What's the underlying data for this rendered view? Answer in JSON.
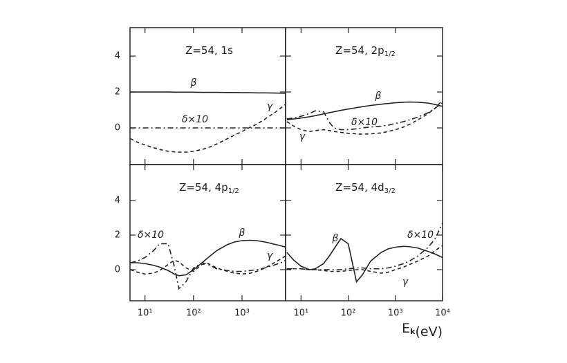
{
  "chart_data": [
    {
      "type": "line",
      "title": "Z=54, 1s",
      "xscale": "log",
      "xlim": [
        4.9,
        7900
      ],
      "ylim": [
        -2.04,
        5.58
      ],
      "xticks": [
        10,
        100,
        1000
      ],
      "yticks": [
        0,
        2,
        4
      ],
      "show_xtick_labels": false,
      "show_ytick_labels": true,
      "x": [
        5,
        7,
        10,
        15,
        20,
        30,
        40,
        50,
        70,
        100,
        150,
        200,
        300,
        500,
        700,
        1000,
        1500,
        2000,
        3000,
        5000,
        7000,
        7900
      ],
      "series": [
        {
          "name": "β",
          "style": "solid",
          "color": "#222",
          "values": [
            2.0,
            2.0,
            2.0,
            2.0,
            2.0,
            2.0,
            1.99,
            1.99,
            1.99,
            1.99,
            1.98,
            1.98,
            1.98,
            1.97,
            1.97,
            1.96,
            1.96,
            1.95,
            1.95,
            1.94,
            1.93,
            1.93
          ]
        },
        {
          "name": "γ",
          "style": "dashed",
          "color": "#222",
          "values": [
            -0.6,
            -0.8,
            -0.95,
            -1.1,
            -1.2,
            -1.3,
            -1.33,
            -1.35,
            -1.35,
            -1.3,
            -1.2,
            -1.1,
            -0.9,
            -0.6,
            -0.4,
            -0.2,
            0.05,
            0.2,
            0.5,
            0.9,
            1.2,
            1.3
          ]
        },
        {
          "name": "δ×10",
          "style": "dashdot",
          "color": "#222",
          "values": [
            0,
            0,
            0,
            0,
            0,
            0,
            0,
            0,
            0,
            0,
            0,
            0,
            0,
            0,
            0,
            0,
            0,
            0,
            0,
            0,
            0,
            0
          ]
        }
      ]
    },
    {
      "type": "line",
      "title": "Z=54, 2p",
      "title_sub": "1/2",
      "xscale": "log",
      "xlim": [
        4.7,
        10000
      ],
      "ylim": [
        -2.04,
        5.58
      ],
      "xticks": [
        10,
        100,
        1000
      ],
      "yticks": [
        0,
        2,
        4
      ],
      "show_xtick_labels": false,
      "show_ytick_labels": false,
      "x": [
        5,
        7,
        10,
        15,
        20,
        30,
        40,
        50,
        70,
        100,
        150,
        200,
        300,
        500,
        700,
        1000,
        1500,
        2000,
        3000,
        5000,
        7000,
        10000
      ],
      "series": [
        {
          "name": "β",
          "style": "solid",
          "color": "#222",
          "values": [
            0.45,
            0.5,
            0.55,
            0.62,
            0.68,
            0.78,
            0.85,
            0.9,
            0.98,
            1.05,
            1.13,
            1.18,
            1.25,
            1.32,
            1.36,
            1.4,
            1.43,
            1.44,
            1.43,
            1.38,
            1.3,
            1.2
          ]
        },
        {
          "name": "δ×10",
          "style": "dashdot",
          "color": "#222",
          "values": [
            0.5,
            0.55,
            0.65,
            0.8,
            0.95,
            0.9,
            0.3,
            0.0,
            -0.1,
            -0.1,
            -0.05,
            0.0,
            0.05,
            0.1,
            0.15,
            0.25,
            0.35,
            0.45,
            0.6,
            0.85,
            1.1,
            1.4
          ]
        },
        {
          "name": "γ",
          "style": "dashed",
          "color": "#222",
          "values": [
            0.35,
            0.1,
            -0.1,
            -0.2,
            -0.15,
            -0.1,
            -0.15,
            -0.2,
            -0.25,
            -0.3,
            -0.33,
            -0.35,
            -0.33,
            -0.28,
            -0.2,
            -0.1,
            0.05,
            0.2,
            0.45,
            0.8,
            1.1,
            1.55
          ]
        }
      ]
    },
    {
      "type": "line",
      "title": "Z=54, 4p",
      "title_sub": "1/2",
      "xscale": "log",
      "xlim": [
        4.9,
        7900
      ],
      "ylim": [
        -1.8,
        6.08
      ],
      "xticks": [
        {
          "value": 10,
          "label": "10¹"
        },
        {
          "value": 100,
          "label": "10²"
        },
        {
          "value": 1000,
          "label": "10³"
        }
      ],
      "yticks": [
        0,
        2,
        4
      ],
      "show_xtick_labels": true,
      "show_ytick_labels": true,
      "x": [
        5,
        7,
        10,
        15,
        20,
        30,
        40,
        50,
        70,
        100,
        150,
        200,
        300,
        500,
        700,
        1000,
        1500,
        2000,
        3000,
        5000,
        7000,
        7900
      ],
      "series": [
        {
          "name": "δ×10",
          "style": "dashdot",
          "color": "#222",
          "values": [
            0.4,
            0.5,
            0.7,
            1.1,
            1.5,
            1.5,
            0.2,
            -1.1,
            -0.7,
            0.1,
            0.4,
            0.3,
            0.05,
            -0.05,
            -0.1,
            -0.1,
            -0.05,
            0.0,
            0.1,
            0.3,
            0.45,
            0.55
          ]
        },
        {
          "name": "β",
          "style": "solid",
          "color": "#222",
          "values": [
            0.4,
            0.4,
            0.35,
            0.25,
            0.15,
            -0.05,
            -0.25,
            -0.35,
            -0.3,
            0.0,
            0.4,
            0.7,
            1.1,
            1.45,
            1.6,
            1.68,
            1.7,
            1.68,
            1.6,
            1.45,
            1.35,
            1.3
          ]
        },
        {
          "name": "γ",
          "style": "dashed",
          "color": "#222",
          "values": [
            0.0,
            -0.15,
            -0.25,
            -0.2,
            -0.05,
            0.3,
            0.55,
            0.45,
            0.1,
            -0.1,
            0.3,
            0.35,
            0.1,
            -0.1,
            -0.2,
            -0.25,
            -0.2,
            -0.1,
            0.1,
            0.45,
            0.7,
            0.8
          ]
        }
      ]
    },
    {
      "type": "line",
      "title": "Z=54, 4d",
      "title_sub": "3/2",
      "xscale": "log",
      "xlim": [
        4.7,
        10000
      ],
      "ylim": [
        -1.8,
        6.08
      ],
      "xticks": [
        {
          "value": 10,
          "label": "10¹"
        },
        {
          "value": 100,
          "label": "10²"
        },
        {
          "value": 1000,
          "label": "10³"
        },
        {
          "value": 10000,
          "label": "10⁴"
        }
      ],
      "yticks": [
        0,
        2,
        4
      ],
      "show_xtick_labels": true,
      "show_ytick_labels": false,
      "xlabel": "E",
      "xlabel_sub": "k",
      "xlabel_unit": "(eV)",
      "x": [
        5,
        7,
        10,
        15,
        20,
        30,
        40,
        50,
        70,
        100,
        150,
        200,
        300,
        500,
        700,
        1000,
        1500,
        2000,
        3000,
        5000,
        7000,
        10000
      ],
      "series": [
        {
          "name": "β",
          "style": "solid",
          "color": "#222",
          "values": [
            1.0,
            0.55,
            0.2,
            0.0,
            0.05,
            0.35,
            0.8,
            1.2,
            1.8,
            1.5,
            -0.7,
            -0.3,
            0.5,
            1.0,
            1.2,
            1.3,
            1.35,
            1.33,
            1.25,
            1.05,
            0.9,
            0.7
          ]
        },
        {
          "name": "δ×10",
          "style": "dashdot",
          "color": "#222",
          "values": [
            0.05,
            0.05,
            0.05,
            0.0,
            0.0,
            0.0,
            0.0,
            0.0,
            0.0,
            0.05,
            0.1,
            0.1,
            0.05,
            0.05,
            0.1,
            0.2,
            0.35,
            0.5,
            0.8,
            1.3,
            1.8,
            2.7
          ]
        },
        {
          "name": "γ",
          "style": "dashed",
          "color": "#222",
          "values": [
            0.05,
            0.05,
            0.05,
            0.0,
            0.0,
            -0.05,
            -0.1,
            -0.1,
            -0.1,
            -0.05,
            0.0,
            0.0,
            -0.1,
            -0.2,
            -0.15,
            0.0,
            0.15,
            0.3,
            0.5,
            0.8,
            1.1,
            1.4
          ]
        }
      ]
    }
  ]
}
